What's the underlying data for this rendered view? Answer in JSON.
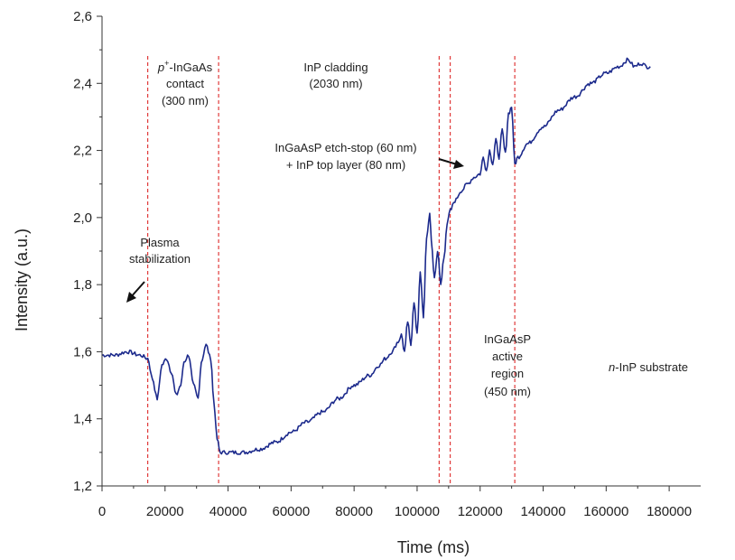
{
  "chart_data": {
    "type": "line",
    "xlabel": "Time (ms)",
    "ylabel": "Intensity (a.u.)",
    "xlim": [
      0,
      190000
    ],
    "ylim": [
      1.2,
      2.6
    ],
    "x_ticks": [
      {
        "value": 0,
        "label": "0"
      },
      {
        "value": 20000,
        "label": "20000"
      },
      {
        "value": 40000,
        "label": "40000"
      },
      {
        "value": 60000,
        "label": "60000"
      },
      {
        "value": 80000,
        "label": "80000"
      },
      {
        "value": 100000,
        "label": "100000"
      },
      {
        "value": 120000,
        "label": "120000"
      },
      {
        "value": 140000,
        "label": "140000"
      },
      {
        "value": 160000,
        "label": "160000"
      },
      {
        "value": 180000,
        "label": "180000"
      }
    ],
    "y_ticks": [
      {
        "value": 1.2,
        "label": "1,2"
      },
      {
        "value": 1.4,
        "label": "1,4"
      },
      {
        "value": 1.6,
        "label": "1,6"
      },
      {
        "value": 1.8,
        "label": "1,8"
      },
      {
        "value": 2.0,
        "label": "2,0"
      },
      {
        "value": 2.2,
        "label": "2,2"
      },
      {
        "value": 2.4,
        "label": "2,4"
      },
      {
        "value": 2.6,
        "label": "2,6"
      }
    ],
    "grid": false,
    "series_color": "#1c2a8c",
    "boundary_color": "#e03a3a",
    "boundaries": [
      14500,
      37000,
      107000,
      110500,
      131000
    ],
    "series": [
      {
        "x": [
          0,
          4000,
          8000,
          12000,
          14500,
          16000,
          17500,
          19000,
          20500,
          22000,
          23500,
          25000,
          26000,
          27500,
          29000,
          30500,
          31500,
          33000,
          34500,
          35500,
          36500,
          37500,
          40000,
          45000,
          50000,
          55000,
          60000,
          65000,
          70000,
          75000,
          80000,
          85000,
          88000,
          90000,
          92000,
          94000,
          95000,
          96000,
          97000,
          98000,
          99000,
          100000,
          101000,
          102000,
          103000,
          104000,
          104500,
          105500,
          106500,
          107500,
          108500,
          109500,
          110500,
          112000,
          114000,
          116000,
          118000,
          120000,
          121000,
          122000,
          123000,
          124000,
          125000,
          126000,
          127000,
          128000,
          129000,
          130000,
          131000,
          132000,
          135000,
          140000,
          145000,
          150000,
          155000,
          160000,
          164000,
          167000,
          169000,
          171000,
          173000,
          174000
        ],
        "y": [
          1.59,
          1.59,
          1.6,
          1.59,
          1.58,
          1.52,
          1.46,
          1.56,
          1.58,
          1.54,
          1.47,
          1.5,
          1.57,
          1.59,
          1.5,
          1.46,
          1.57,
          1.62,
          1.58,
          1.45,
          1.34,
          1.3,
          1.3,
          1.3,
          1.31,
          1.33,
          1.36,
          1.39,
          1.42,
          1.46,
          1.5,
          1.53,
          1.56,
          1.58,
          1.6,
          1.63,
          1.65,
          1.6,
          1.69,
          1.62,
          1.75,
          1.65,
          1.84,
          1.7,
          1.94,
          2.01,
          1.93,
          1.82,
          1.9,
          1.8,
          1.88,
          1.98,
          2.02,
          2.05,
          2.08,
          2.1,
          2.12,
          2.13,
          2.18,
          2.14,
          2.2,
          2.16,
          2.23,
          2.18,
          2.26,
          2.19,
          2.31,
          2.33,
          2.16,
          2.18,
          2.22,
          2.27,
          2.32,
          2.36,
          2.4,
          2.43,
          2.45,
          2.47,
          2.45,
          2.46,
          2.45,
          2.45
        ]
      }
    ],
    "annotations": {
      "plasma": [
        "Plasma",
        "stabilization"
      ],
      "contact": [
        "p⁺-InGaAs",
        "contact",
        "(300 nm)"
      ],
      "cladding": [
        "InP cladding",
        "(2030 nm)"
      ],
      "etchstop": [
        "InGaAsP etch-stop (60 nm)",
        "+ InP top layer (80 nm)"
      ],
      "active": [
        "InGaAsP",
        "active",
        "region",
        "(450 nm)"
      ],
      "substrate": "n-InP substrate"
    }
  }
}
